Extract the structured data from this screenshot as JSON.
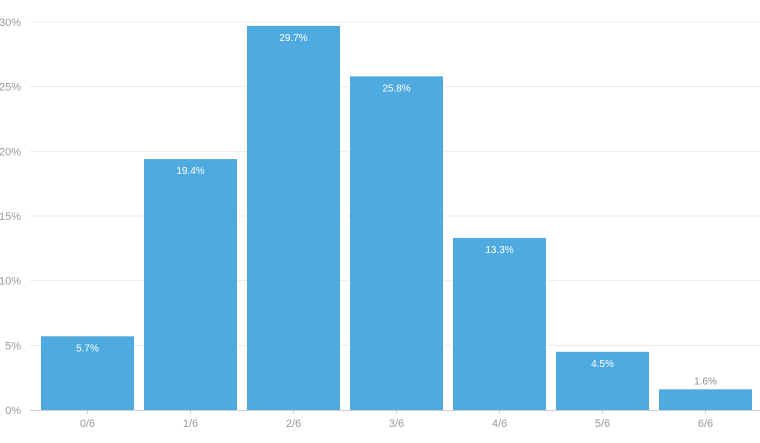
{
  "chart_data": {
    "type": "bar",
    "categories": [
      "0/6",
      "1/6",
      "2/6",
      "3/6",
      "4/6",
      "5/6",
      "6/6"
    ],
    "values": [
      5.7,
      19.4,
      29.7,
      25.8,
      13.3,
      4.5,
      1.6
    ],
    "value_labels": [
      "5.7%",
      "19.4%",
      "29.7%",
      "25.8%",
      "13.3%",
      "4.5%",
      "1.6%"
    ],
    "title": "",
    "xlabel": "",
    "ylabel": "",
    "ylim": [
      0,
      30
    ],
    "y_ticks": [
      0,
      5,
      10,
      15,
      20,
      25,
      30
    ],
    "y_tick_labels": [
      "0%",
      "5%",
      "10%",
      "15%",
      "20%",
      "25%",
      "30%"
    ],
    "grid": true,
    "legend": "none"
  },
  "colors": {
    "bar": "#4eaadf",
    "grid": "#ececec",
    "axis": "#cfcfcf",
    "tick_text": "#9a9a9a",
    "inside_label": "#ffffff",
    "outside_label": "#8c8c8c"
  }
}
